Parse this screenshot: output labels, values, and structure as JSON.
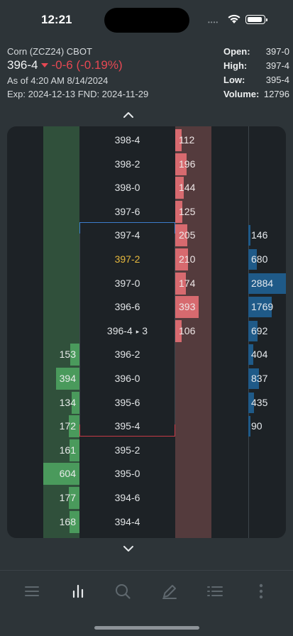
{
  "status_bar": {
    "time": "12:21",
    "dots": "••••"
  },
  "quote": {
    "instrument": "Corn (ZCZ24) CBOT",
    "last_price": "396-4",
    "change": "-0-6 (-0.19%)",
    "as_of": "As of 4:20 AM 8/14/2024",
    "expiry": "Exp: 2024-12-13 FND: 2024-11-29",
    "open_label": "Open:",
    "open_value": "397-0",
    "high_label": "High:",
    "high_value": "397-4",
    "low_label": "Low:",
    "low_value": "395-4",
    "volume_label": "Volume:",
    "volume_value": "12796"
  },
  "colors": {
    "down": "#e64853",
    "bid_bar": "#4a9a5c",
    "ask_bar": "#d76a6f",
    "volume_bar": "#1f5a88",
    "current_price": "#e7b93e",
    "high_marker": "#3c7dcc",
    "low_marker": "#c63a46"
  },
  "ladder": {
    "current_price": "397-2",
    "last_trade_price": "396-4",
    "last_trade_size": "3",
    "max_bid": 604,
    "max_ask": 393,
    "max_volume": 2884,
    "rows": [
      {
        "price": "398-4",
        "bid": "",
        "ask": "112",
        "volume": ""
      },
      {
        "price": "398-2",
        "bid": "",
        "ask": "196",
        "volume": ""
      },
      {
        "price": "398-0",
        "bid": "",
        "ask": "144",
        "volume": ""
      },
      {
        "price": "397-6",
        "bid": "",
        "ask": "125",
        "volume": ""
      },
      {
        "price": "397-4",
        "bid": "",
        "ask": "205",
        "volume": "146"
      },
      {
        "price": "397-2",
        "bid": "",
        "ask": "210",
        "volume": "680"
      },
      {
        "price": "397-0",
        "bid": "",
        "ask": "174",
        "volume": "2884"
      },
      {
        "price": "396-6",
        "bid": "",
        "ask": "393",
        "volume": "1769"
      },
      {
        "price": "396-4",
        "bid": "",
        "ask": "106",
        "volume": "692"
      },
      {
        "price": "396-2",
        "bid": "153",
        "ask": "",
        "volume": "404"
      },
      {
        "price": "396-0",
        "bid": "394",
        "ask": "",
        "volume": "837"
      },
      {
        "price": "395-6",
        "bid": "134",
        "ask": "",
        "volume": "435"
      },
      {
        "price": "395-4",
        "bid": "172",
        "ask": "",
        "volume": "90"
      },
      {
        "price": "395-2",
        "bid": "161",
        "ask": "",
        "volume": ""
      },
      {
        "price": "395-0",
        "bid": "604",
        "ask": "",
        "volume": ""
      },
      {
        "price": "394-6",
        "bid": "177",
        "ask": "",
        "volume": ""
      },
      {
        "price": "394-4",
        "bid": "168",
        "ask": "",
        "volume": ""
      }
    ]
  },
  "toolbar": {
    "items": [
      {
        "icon": "menu-icon",
        "active": false
      },
      {
        "icon": "chart-bars-icon",
        "active": true
      },
      {
        "icon": "search-icon",
        "active": false
      },
      {
        "icon": "pencil-icon",
        "active": false
      },
      {
        "icon": "list-icon",
        "active": false
      },
      {
        "icon": "more-vertical-icon",
        "active": false
      }
    ]
  }
}
